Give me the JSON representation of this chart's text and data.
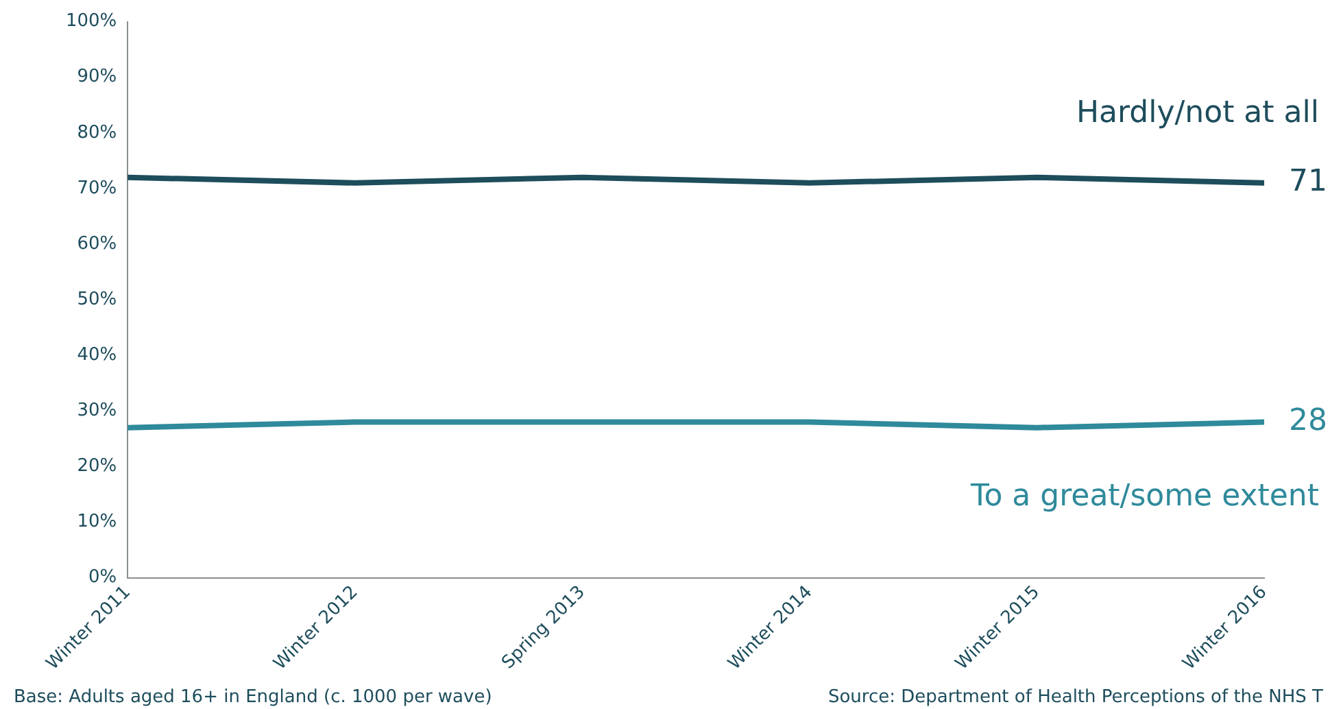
{
  "chart_data": {
    "type": "line",
    "categories": [
      "Winter 2011",
      "Winter 2012",
      "Spring 2013",
      "Winter 2014",
      "Winter 2015",
      "Winter 2016"
    ],
    "ylim": [
      0,
      100
    ],
    "yticks": [
      {
        "value": 0,
        "label": "0%"
      },
      {
        "value": 10,
        "label": "10%"
      },
      {
        "value": 20,
        "label": "20%"
      },
      {
        "value": 30,
        "label": "30%"
      },
      {
        "value": 40,
        "label": "40%"
      },
      {
        "value": 50,
        "label": "50%"
      },
      {
        "value": 60,
        "label": "60%"
      },
      {
        "value": 70,
        "label": "70%"
      },
      {
        "value": 80,
        "label": "80%"
      },
      {
        "value": 90,
        "label": "90%"
      },
      {
        "value": 100,
        "label": "100%"
      }
    ],
    "series": [
      {
        "name": "Hardly/not at all",
        "color": "#1e4d5c",
        "values": [
          72,
          71,
          72,
          71,
          72,
          71
        ],
        "value_labels": [
          null,
          null,
          null,
          null,
          null,
          "71"
        ]
      },
      {
        "name": "To a great/some extent",
        "color": "#2f8a9b",
        "values": [
          27,
          28,
          28,
          28,
          27,
          28
        ],
        "value_labels": [
          null,
          null,
          null,
          null,
          null,
          "28"
        ]
      }
    ],
    "grid": false,
    "legend": false,
    "marker": "none",
    "line_style": "solid",
    "annotations": [
      "Base: Adults aged 16+ in England (c. 1000 per wave)",
      "Source: Department of Health Perceptions of the NHS T"
    ]
  }
}
